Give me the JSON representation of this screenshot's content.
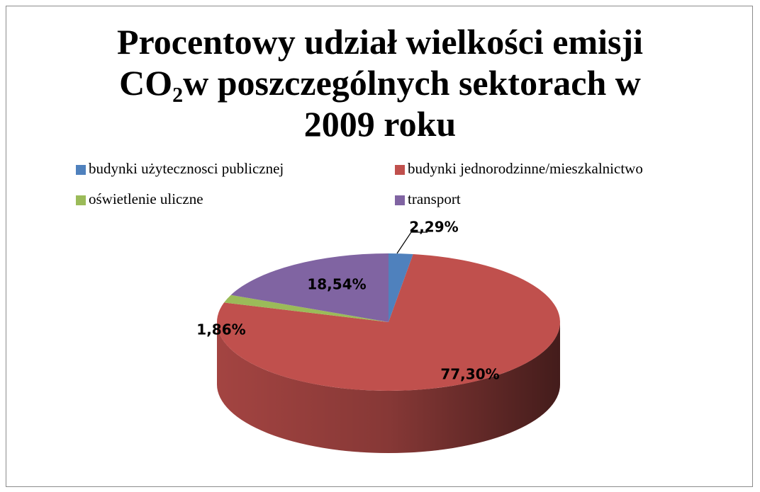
{
  "chart_data": {
    "type": "pie3d",
    "title": "Procentowy udział wielkości emisji CO₂w poszczególnych sektorach w 2009 roku",
    "categories": [
      "budynki użytecznosci publicznej",
      "budynki jednorodzinne/mieszkalnictwo",
      "oświetlenie uliczne",
      "transport"
    ],
    "values": [
      2.29,
      77.3,
      1.86,
      18.54
    ],
    "value_labels": [
      "2,29%",
      "77,30%",
      "1,86%",
      "18,54%"
    ],
    "colors": [
      "#4f81bd",
      "#c0504d",
      "#9bbb59",
      "#8064a2"
    ],
    "legend": "top"
  }
}
